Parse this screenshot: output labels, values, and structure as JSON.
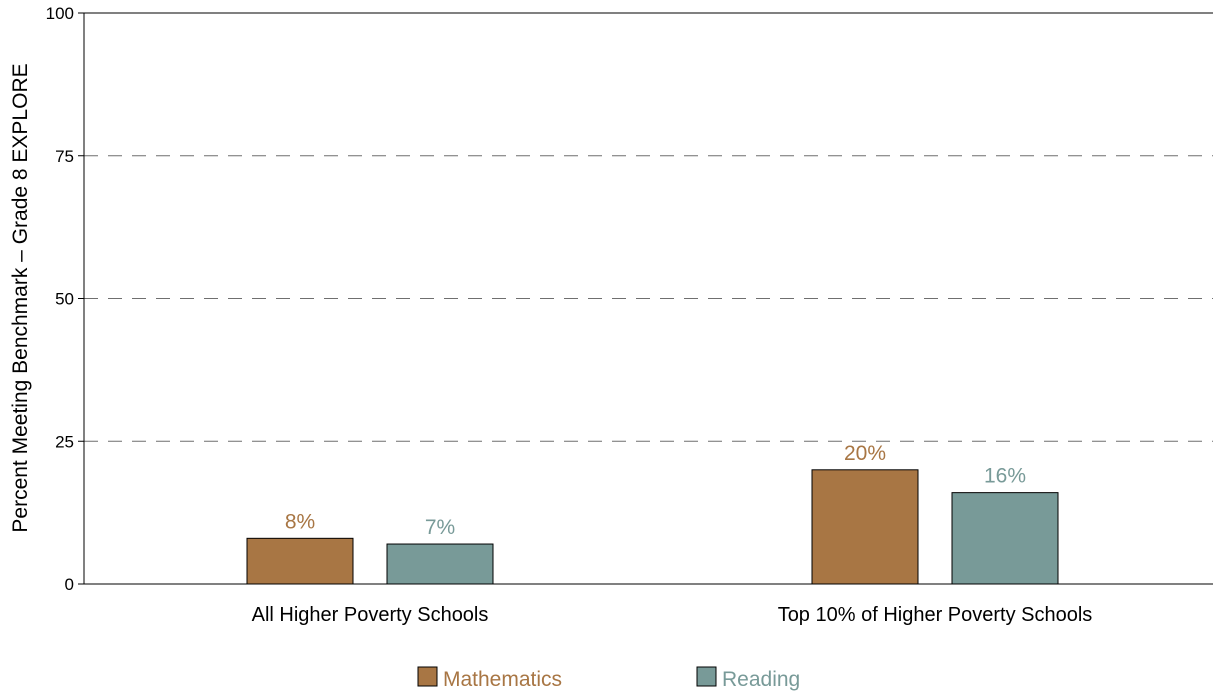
{
  "chart_data": {
    "type": "bar",
    "title": "",
    "xlabel": "",
    "ylabel": "Percent Meeting Benchmark – Grade 8 EXPLORE",
    "ylim": [
      0,
      100
    ],
    "yticks": [
      0,
      25,
      50,
      75,
      100
    ],
    "grid": "dashed horizontal",
    "categories": [
      "All Higher Poverty Schools",
      "Top 10% of Higher Poverty Schools"
    ],
    "series": [
      {
        "name": "Mathematics",
        "values": [
          8,
          20
        ],
        "labels": [
          "8%",
          "20%"
        ],
        "color": "#A87644"
      },
      {
        "name": "Reading",
        "values": [
          7,
          16
        ],
        "labels": [
          "7%",
          "16%"
        ],
        "color": "#789A98"
      }
    ],
    "legend": "bottom-center"
  }
}
